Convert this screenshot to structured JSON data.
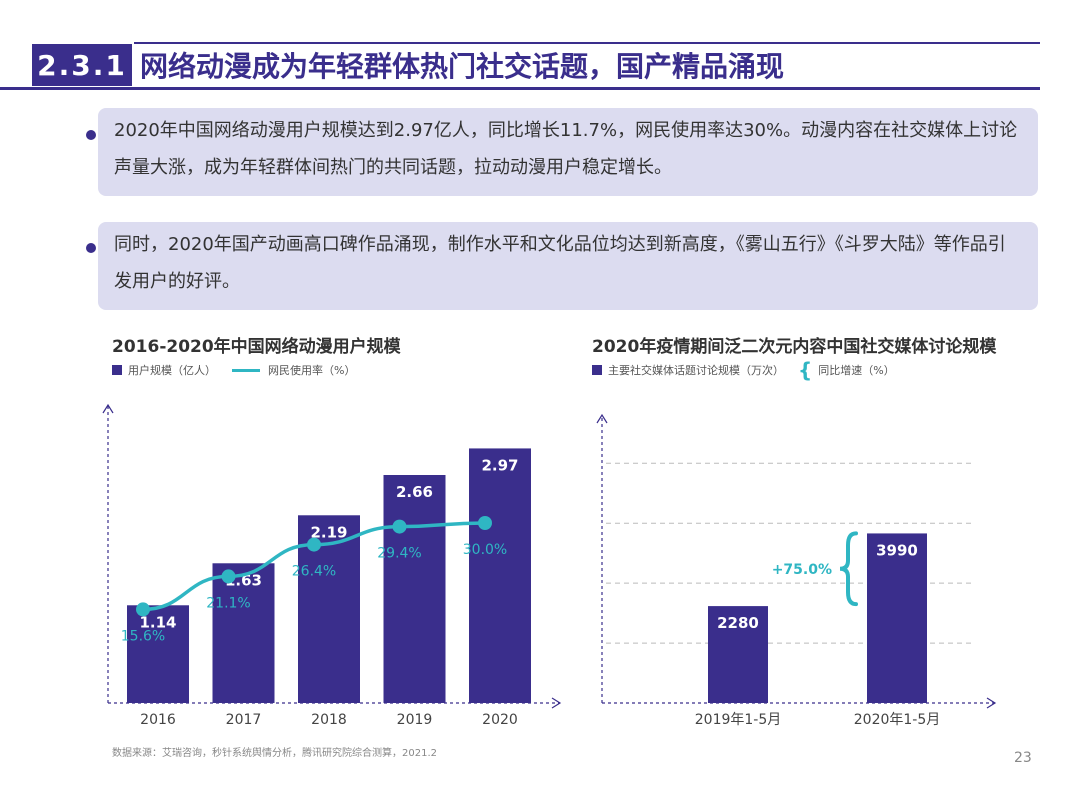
{
  "header": {
    "section_number": "2.3.1",
    "title": "网络动漫成为年轻群体热门社交话题，国产精品涌现"
  },
  "bullets": [
    "2020年中国网络动漫用户规模达到2.97亿人，同比增长11.7%，网民使用率达30%。动漫内容在社交媒体上讨论声量大涨，成为年轻群体间热门的共同话题，拉动动漫用户稳定增长。",
    "同时，2020年国产动画高口碑作品涌现，制作水平和文化品位均达到新高度，《雾山五行》《斗罗大陆》等作品引发用户的好评。"
  ],
  "colors": {
    "accent": "#3a2e8c",
    "line": "#2fb6c3",
    "box": "#dcdcf0"
  },
  "chart_data": [
    {
      "type": "bar",
      "title": "2016-2020年中国网络动漫用户规模",
      "categories": [
        "2016",
        "2017",
        "2018",
        "2019",
        "2020"
      ],
      "series": [
        {
          "name": "用户规模（亿人）",
          "type": "bar",
          "values": [
            1.14,
            1.63,
            2.19,
            2.66,
            2.97
          ],
          "labels": [
            "1.14",
            "1.63",
            "2.19",
            "2.66",
            "2.97"
          ]
        },
        {
          "name": "网民使用率（%）",
          "type": "line",
          "values": [
            15.6,
            21.1,
            26.4,
            29.4,
            30.0
          ],
          "labels": [
            "15.6%",
            "21.1%",
            "26.4%",
            "29.4%",
            "30.0%"
          ]
        }
      ],
      "ylim": [
        0,
        3.5
      ],
      "y2lim": [
        0,
        50
      ],
      "grid": false,
      "legend": "top-left"
    },
    {
      "type": "bar",
      "title": "2020年疫情期间泛二次元内容中国社交媒体讨论规模",
      "categories": [
        "2019年1-5月",
        "2020年1-5月"
      ],
      "series": [
        {
          "name": "主要社交媒体话题讨论规模（万次）",
          "type": "bar",
          "values": [
            2280,
            3990
          ],
          "labels": [
            "2280",
            "3990"
          ]
        }
      ],
      "growth": {
        "name": "同比增速（%）",
        "value": 75.0,
        "label": "+75.0%"
      },
      "ylim": [
        0,
        5000
      ],
      "grid": true,
      "legend": "top-left"
    }
  ],
  "footer": {
    "source": "数据来源：艾瑞咨询，秒针系统舆情分析，腾讯研究院综合测算，2021.2",
    "page_number": "23"
  }
}
